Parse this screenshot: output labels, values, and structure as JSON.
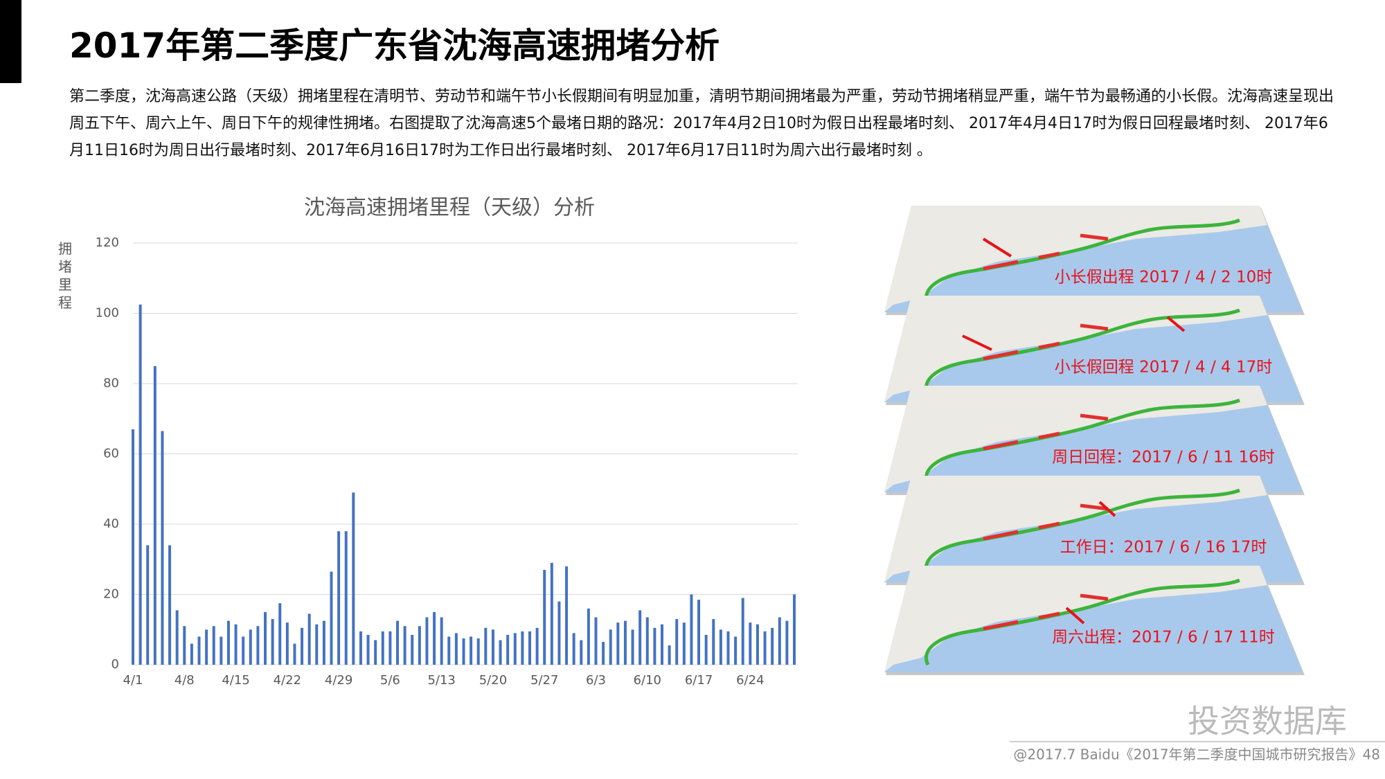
{
  "header": {
    "title": "2017年第二季度广东省沈海高速拥堵分析"
  },
  "body": {
    "paragraph": "第二季度，沈海高速公路（天级）拥堵里程在清明节、劳动节和端午节小长假期间有明显加重，清明节期间拥堵最为严重，劳动节拥堵稍显严重，端午节为最畅通的小长假。沈海高速呈现出周五下午、周六上午、周日下午的规律性拥堵。右图提取了沈海高速5个最堵日期的路况：2017年4月2日10时为假日出程最堵时刻、 2017年4月4日17时为假日回程最堵时刻、 2017年6月11日16时为周日出行最堵时刻、2017年6月16日17时为工作日出行最堵时刻、 2017年6月17日11时为周六出行最堵时刻 。"
  },
  "chart_data": {
    "type": "bar",
    "title": "沈海高速拥堵里程（天级）分析",
    "y_label": "拥堵里程",
    "color": "#4472c4",
    "grid": true,
    "categories": [
      "4/1",
      null,
      null,
      null,
      null,
      null,
      null,
      "4/8",
      null,
      null,
      null,
      null,
      null,
      null,
      "4/15",
      null,
      null,
      null,
      null,
      null,
      null,
      "4/22",
      null,
      null,
      null,
      null,
      null,
      null,
      "4/29",
      null,
      null,
      null,
      null,
      null,
      null,
      "5/6",
      null,
      null,
      null,
      null,
      null,
      null,
      "5/13",
      null,
      null,
      null,
      null,
      null,
      null,
      "5/20",
      null,
      null,
      null,
      null,
      null,
      null,
      "5/27",
      null,
      null,
      null,
      null,
      null,
      null,
      "6/3",
      null,
      null,
      null,
      null,
      null,
      null,
      "6/10",
      null,
      null,
      null,
      null,
      null,
      null,
      "6/17",
      null,
      null,
      null,
      null,
      null,
      null,
      "6/24",
      null,
      null,
      null,
      null,
      null,
      null
    ],
    "values": [
      67,
      102.5,
      34,
      85,
      66.5,
      34,
      15.5,
      11,
      6,
      8,
      10,
      11,
      8,
      12.5,
      11.5,
      8,
      10,
      11,
      15,
      13,
      17.5,
      12,
      6,
      10.5,
      14.5,
      11.5,
      12.5,
      26.5,
      38,
      38,
      49,
      9.5,
      8.5,
      7,
      9.5,
      9.5,
      12.5,
      11,
      8.5,
      11,
      13.5,
      15,
      13.5,
      8,
      9,
      7.5,
      8,
      7.5,
      10.5,
      10,
      7,
      8.5,
      9,
      9.5,
      9.5,
      10.5,
      27,
      29,
      18,
      28,
      9,
      7,
      16,
      13.5,
      6.5,
      10,
      12,
      12.5,
      10,
      15.5,
      13.5,
      10.5,
      11.5,
      5.5,
      13,
      12,
      20,
      18.5,
      8.5,
      13,
      10,
      9.5,
      8,
      19,
      12,
      11.5,
      9.5,
      10.5,
      13.5,
      12.5,
      20
    ],
    "ylim": [
      0,
      120
    ],
    "yticks": [
      0,
      20,
      40,
      60,
      80,
      100,
      120
    ]
  },
  "maps": {
    "labels": [
      "小长假出程 2017 / 4 / 2  10时",
      "小长假回程 2017 / 4 / 4  17时",
      "周日回程：2017 / 6 / 11  16时",
      "工作日：2017 / 6 / 16  17时",
      "周六出程：2017 / 6 / 17  11时"
    ]
  },
  "footer": {
    "watermark": "投资数据库",
    "source": "@2017.7 Baidu《2017年第二季度中国城市研究报告》48"
  }
}
